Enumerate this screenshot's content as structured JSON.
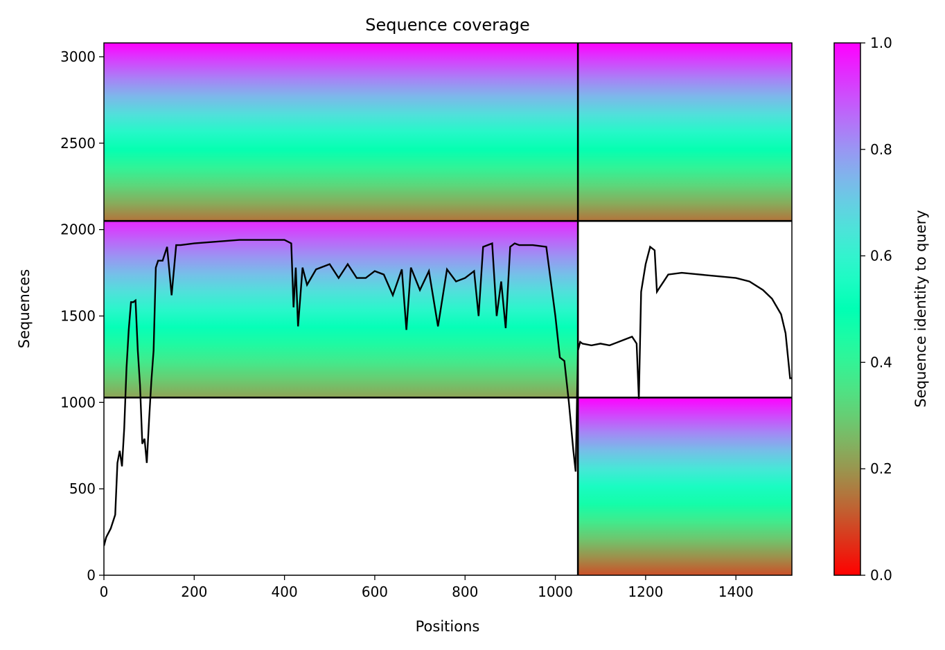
{
  "chart_data": {
    "type": "heatmap",
    "title": "Sequence coverage",
    "xlabel": "Positions",
    "ylabel": "Sequences",
    "colorbar_label": "Sequence identity to query",
    "colormap": "rainbow_r",
    "xlim": [
      0,
      1524
    ],
    "ylim": [
      0,
      3080
    ],
    "x_ticks": [
      0,
      200,
      400,
      600,
      800,
      1000,
      1200,
      1400
    ],
    "y_ticks": [
      0,
      500,
      1000,
      1500,
      2000,
      2500,
      3000
    ],
    "colorbar_ticks": [
      0.0,
      0.2,
      0.4,
      0.6,
      0.8,
      1.0
    ],
    "colorbar_tick_labels": [
      "0.0",
      "0.2",
      "0.4",
      "0.6",
      "0.8",
      "1.0"
    ],
    "x_tick_labels": [
      "0",
      "200",
      "400",
      "600",
      "800",
      "1000",
      "1200",
      "1400"
    ],
    "y_tick_labels": [
      "0",
      "500",
      "1000",
      "1500",
      "2000",
      "2500",
      "3000"
    ],
    "chain_boundary_x": 1050,
    "block_boundaries_y": [
      1028,
      2050
    ],
    "coverage_blocks": [
      {
        "x_start": 1050,
        "x_end": 1524,
        "y_start": 0,
        "y_end": 1028,
        "identity_bottom": 0.1,
        "identity_top": 1.0
      },
      {
        "x_start": 0,
        "x_end": 1050,
        "y_start": 1028,
        "y_end": 2050,
        "identity_bottom": 0.22,
        "identity_top": 0.95
      },
      {
        "x_start": 0,
        "x_end": 1524,
        "y_start": 2050,
        "y_end": 3080,
        "identity_bottom": 0.15,
        "identity_top": 1.0
      }
    ],
    "coverage_line": {
      "x": [
        0,
        5,
        15,
        25,
        30,
        35,
        40,
        45,
        50,
        55,
        60,
        65,
        70,
        75,
        80,
        85,
        90,
        95,
        100,
        105,
        110,
        115,
        120,
        130,
        140,
        150,
        160,
        170,
        200,
        250,
        300,
        350,
        400,
        415,
        420,
        425,
        430,
        440,
        450,
        470,
        500,
        520,
        540,
        560,
        580,
        600,
        620,
        640,
        660,
        670,
        680,
        700,
        720,
        740,
        760,
        780,
        800,
        820,
        830,
        840,
        860,
        870,
        880,
        890,
        900,
        910,
        920,
        950,
        980,
        1000,
        1010,
        1020,
        1030,
        1040,
        1045,
        1050,
        1055,
        1060,
        1080,
        1100,
        1120,
        1150,
        1170,
        1180,
        1185,
        1190,
        1200,
        1210,
        1220,
        1225,
        1230,
        1240,
        1250,
        1280,
        1320,
        1360,
        1400,
        1430,
        1460,
        1480,
        1500,
        1510,
        1520,
        1524
      ],
      "y": [
        170,
        220,
        270,
        350,
        650,
        720,
        630,
        850,
        1200,
        1420,
        1580,
        1580,
        1590,
        1300,
        1100,
        760,
        790,
        650,
        900,
        1120,
        1300,
        1780,
        1820,
        1820,
        1900,
        1620,
        1910,
        1910,
        1920,
        1930,
        1940,
        1940,
        1940,
        1920,
        1550,
        1780,
        1440,
        1780,
        1680,
        1770,
        1800,
        1720,
        1800,
        1720,
        1720,
        1760,
        1740,
        1620,
        1770,
        1420,
        1780,
        1650,
        1760,
        1440,
        1770,
        1700,
        1720,
        1760,
        1500,
        1900,
        1920,
        1500,
        1700,
        1430,
        1900,
        1920,
        1910,
        1910,
        1900,
        1500,
        1260,
        1240,
        1000,
        720,
        600,
        1300,
        1350,
        1340,
        1330,
        1340,
        1330,
        1360,
        1380,
        1340,
        1020,
        1640,
        1800,
        1900,
        1880,
        1640,
        1660,
        1700,
        1740,
        1750,
        1740,
        1730,
        1720,
        1700,
        1650,
        1600,
        1510,
        1400,
        1140,
        1140
      ]
    }
  }
}
